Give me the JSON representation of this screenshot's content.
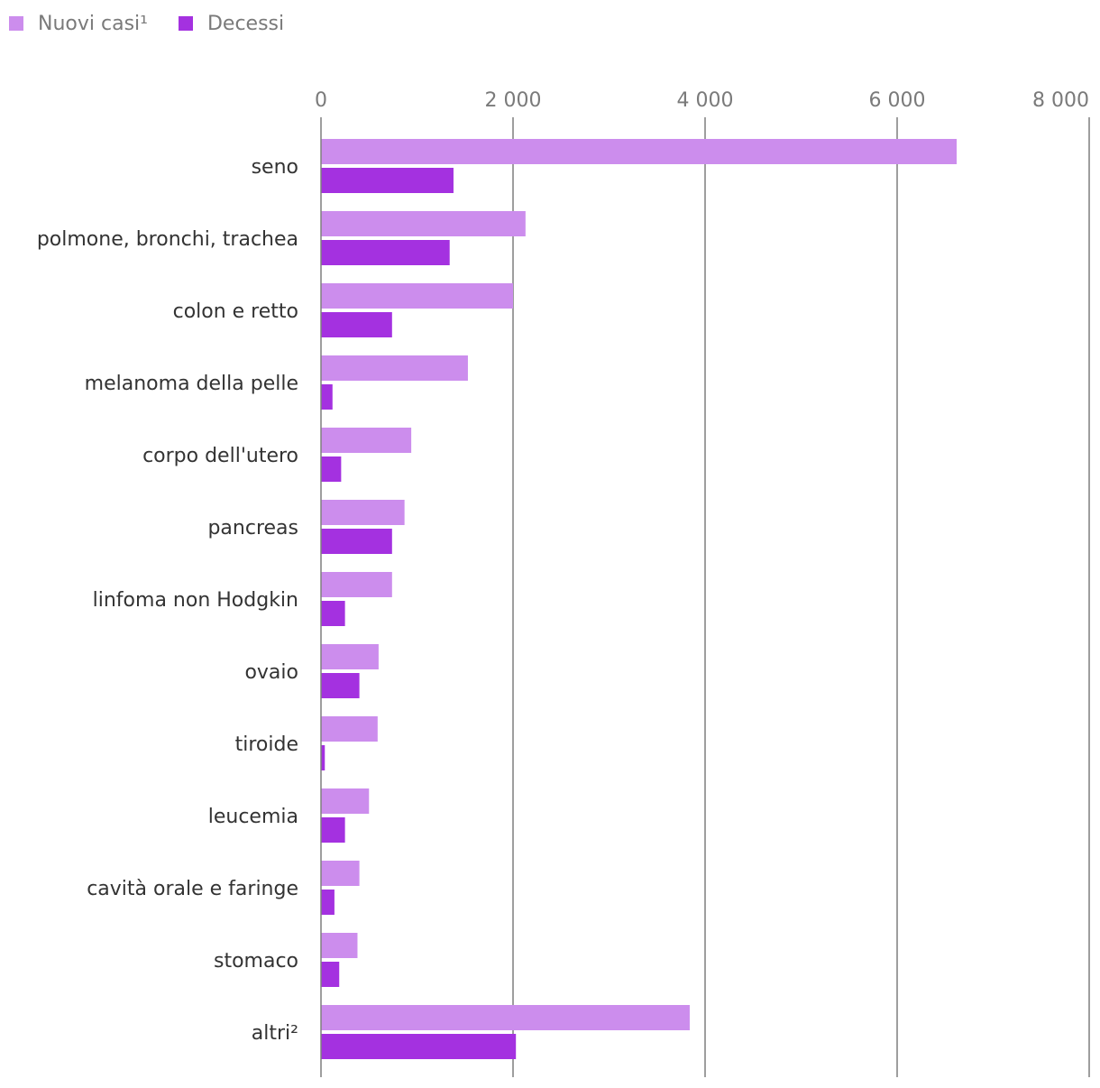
{
  "legend": {
    "items": [
      {
        "label": "Nuovi casi¹",
        "color": "#cc8ded"
      },
      {
        "label": "Decessi",
        "color": "#a431e0"
      }
    ]
  },
  "chart_data": {
    "type": "bar",
    "orientation": "horizontal",
    "title": "",
    "xlabel": "",
    "ylabel": "",
    "xlim": [
      0,
      8000
    ],
    "ticks": [
      0,
      2000,
      4000,
      6000,
      8000
    ],
    "tick_labels": [
      "0",
      "2 000",
      "4 000",
      "6 000",
      "8 000"
    ],
    "grid": true,
    "legend_position": "top-left",
    "categories": [
      "seno",
      "polmone, bronchi, trachea",
      "colon e retto",
      "melanoma della pelle",
      "corpo dell'utero",
      "pancreas",
      "linfoma non Hodgkin",
      "ovaio",
      "tiroide",
      "leucemia",
      "cavità orale e faringe",
      "stomaco",
      "altri²"
    ],
    "series": [
      {
        "name": "Nuovi casi¹",
        "color": "#cc8ded",
        "values": [
          6620,
          2130,
          2000,
          1530,
          940,
          870,
          740,
          600,
          590,
          500,
          400,
          380,
          3840
        ]
      },
      {
        "name": "Decessi",
        "color": "#a431e0",
        "values": [
          1380,
          1340,
          740,
          120,
          210,
          740,
          250,
          400,
          40,
          250,
          140,
          190,
          2030
        ]
      }
    ]
  }
}
